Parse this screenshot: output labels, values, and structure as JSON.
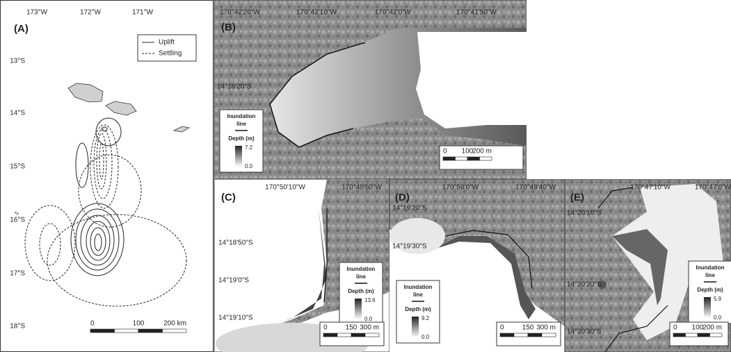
{
  "panel_a": {
    "label": "(A)",
    "lon_labels": [
      "173°W",
      "172°W",
      "171°W"
    ],
    "lat_labels": [
      "13°S",
      "14°S",
      "15°S",
      "16°S",
      "17°S",
      "18°S"
    ],
    "legend": [
      "Uplift",
      "Settling"
    ],
    "scale": [
      "0",
      "100",
      "200 km"
    ]
  },
  "panels": [
    {
      "label": "(B)",
      "lon_labels": [
        "170°42'20\"W",
        "170°42'10\"W",
        "170°42'0\"W",
        "170°41'50\"W"
      ],
      "lat_labels": [
        "14°18'20\"S"
      ],
      "legend": {
        "inundation": [
          "Inundation",
          "line"
        ],
        "depth_title": "Depth (m)",
        "max": "7.2",
        "min": "0.0"
      },
      "scale": [
        "0",
        "100",
        "200 m"
      ]
    },
    {
      "label": "(C)",
      "lon_labels": [
        "170°50'10\"W",
        "170°49'50\"W"
      ],
      "lat_labels": [
        "14°18'50\"S",
        "14°19'0\"S",
        "14°19'10\"S"
      ],
      "legend": {
        "inundation": [
          "Inundation",
          "line"
        ],
        "depth_title": "Depth (m)",
        "max": "13.6",
        "min": "0.0"
      },
      "scale": [
        "0",
        "150",
        "300 m"
      ]
    },
    {
      "label": "(D)",
      "lon_labels": [
        "170°50'0\"W",
        "170°49'40\"W"
      ],
      "lat_labels": [
        "14°19'20\"S",
        "14°19'30\"S"
      ],
      "legend": {
        "inundation": [
          "Inundation",
          "line"
        ],
        "depth_title": "Depth (m)",
        "max": "9.2",
        "min": "0.0"
      },
      "scale": [
        "0",
        "150",
        "300 m"
      ]
    },
    {
      "label": "(E)",
      "lon_labels": [
        "170°47'10\"W",
        "170°47'0\"W"
      ],
      "lat_labels": [
        "14°20'10\"S",
        "14°20'20\"S",
        "14°20'30\"S"
      ],
      "legend": {
        "inundation": [
          "Inundation",
          "line"
        ],
        "depth_title": "Depth (m)",
        "max": "5.9",
        "min": "0.0"
      },
      "scale": [
        "0",
        "100",
        "200 m"
      ]
    }
  ]
}
